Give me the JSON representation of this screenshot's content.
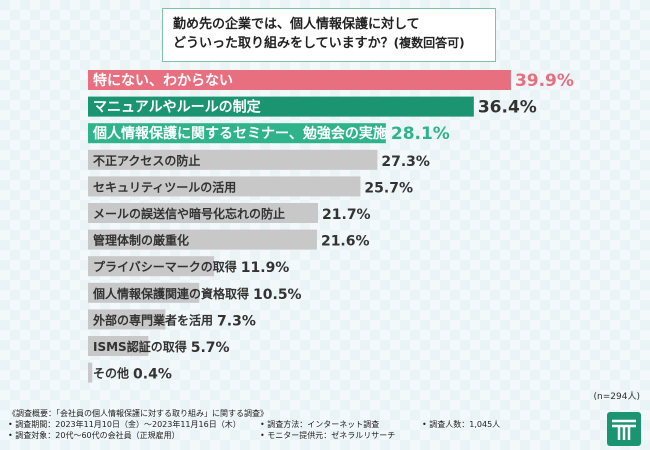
{
  "title": {
    "line1": "勤め先の企業では、個人情報保護に対して",
    "line2": "どういった取り組みをしていますか？",
    "line2_suffix": "(複数回答可)"
  },
  "chart_data": {
    "type": "bar",
    "orientation": "horizontal",
    "categories": [
      "特にない、わからない",
      "マニュアルやルールの制定",
      "個人情報保護に関するセミナー、勉強会の実施",
      "不正アクセスの防止",
      "セキュリティツールの活用",
      "メールの誤送信や暗号化忘れの防止",
      "管理体制の厳重化",
      "プライバシーマークの取得",
      "個人情報保護関連の資格取得",
      "外部の専門業者を活用",
      "ISMS認証の取得",
      "その他"
    ],
    "values": [
      39.9,
      36.4,
      28.1,
      27.3,
      25.7,
      21.7,
      21.6,
      11.9,
      10.5,
      7.3,
      5.7,
      0.4
    ],
    "value_labels": [
      "39.9%",
      "36.4%",
      "28.1%",
      "27.3%",
      "25.7%",
      "21.7%",
      "21.6%",
      "11.9%",
      "10.5%",
      "7.3%",
      "5.7%",
      "0.4%"
    ],
    "colors": [
      "#e76f7f",
      "#1a9471",
      "#2fb38a",
      "#c8c8c8",
      "#c8c8c8",
      "#c8c8c8",
      "#c8c8c8",
      "#c8c8c8",
      "#c8c8c8",
      "#c8c8c8",
      "#c8c8c8",
      "#c8c8c8"
    ],
    "value_colors": [
      "#e76f7f",
      "#333333",
      "#2fb38a",
      "#333333",
      "#333333",
      "#333333",
      "#333333",
      "#333333",
      "#333333",
      "#333333",
      "#333333",
      "#333333"
    ],
    "label_colors": [
      "#ffffff",
      "#ffffff",
      "#ffffff",
      "#333333",
      "#333333",
      "#333333",
      "#333333",
      "#333333",
      "#333333",
      "#333333",
      "#333333",
      "#333333"
    ],
    "xlim": [
      0,
      40
    ]
  },
  "n_label": "(n=294人)",
  "footer": {
    "line1": "《調査概要：「会社員の個人情報保護に対する取り組み」に関する調査》",
    "period": "• 調査期間：2023年11月10日（金）～2023年11月16日（木）",
    "method": "• 調査方法：インターネット調査",
    "count": "• 調査人数：1,045人",
    "target": "• 調査対象：20代～60代の会社員（正規雇用）",
    "provider": "• モニター提供元：ゼネラルリサーチ"
  },
  "colors": {
    "accent": "#1a9471",
    "highlight": "#e76f7f"
  }
}
